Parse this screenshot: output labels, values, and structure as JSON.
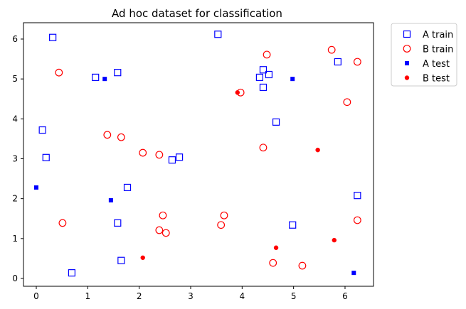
{
  "chart_data": {
    "type": "scatter",
    "title": "Ad hoc dataset for classification",
    "xlabel": "",
    "ylabel": "",
    "xlim": [
      -0.25,
      6.45
    ],
    "ylim": [
      -0.2,
      6.4
    ],
    "xticks": [
      0,
      1,
      2,
      3,
      4,
      5,
      6
    ],
    "yticks": [
      0,
      1,
      2,
      3,
      4,
      5,
      6
    ],
    "grid": false,
    "legend_placement": "outside-top-right",
    "series": [
      {
        "name": "A train",
        "marker": "open-square",
        "color": "#0000ff",
        "points": [
          [
            0.32,
            6.04
          ],
          [
            1.15,
            5.04
          ],
          [
            1.58,
            5.16
          ],
          [
            3.53,
            6.12
          ],
          [
            4.34,
            5.04
          ],
          [
            4.41,
            5.23
          ],
          [
            4.52,
            5.11
          ],
          [
            4.41,
            4.79
          ],
          [
            5.86,
            5.43
          ],
          [
            4.66,
            3.92
          ],
          [
            0.12,
            3.72
          ],
          [
            0.19,
            3.03
          ],
          [
            2.64,
            2.97
          ],
          [
            2.78,
            3.04
          ],
          [
            1.77,
            2.28
          ],
          [
            1.58,
            1.39
          ],
          [
            1.65,
            0.45
          ],
          [
            0.69,
            0.14
          ],
          [
            4.98,
            1.34
          ],
          [
            6.24,
            2.08
          ]
        ]
      },
      {
        "name": "B train",
        "marker": "open-circle",
        "color": "#ff0000",
        "points": [
          [
            0.44,
            5.16
          ],
          [
            0.51,
            1.39
          ],
          [
            1.38,
            3.6
          ],
          [
            1.65,
            3.54
          ],
          [
            2.07,
            3.15
          ],
          [
            2.39,
            3.1
          ],
          [
            2.46,
            1.58
          ],
          [
            2.39,
            1.21
          ],
          [
            2.52,
            1.14
          ],
          [
            3.65,
            1.58
          ],
          [
            3.59,
            1.34
          ],
          [
            3.97,
            4.66
          ],
          [
            4.48,
            5.61
          ],
          [
            4.41,
            3.28
          ],
          [
            4.6,
            0.39
          ],
          [
            5.17,
            0.32
          ],
          [
            5.74,
            5.73
          ],
          [
            6.24,
            5.43
          ],
          [
            6.04,
            4.42
          ],
          [
            6.24,
            1.46
          ]
        ]
      },
      {
        "name": "A test",
        "marker": "filled-square",
        "color": "#0000ff",
        "points": [
          [
            1.33,
            5.0
          ],
          [
            4.98,
            5.0
          ],
          [
            0.0,
            2.28
          ],
          [
            1.45,
            1.96
          ],
          [
            6.17,
            0.14
          ]
        ]
      },
      {
        "name": "B test",
        "marker": "filled-circle",
        "color": "#ff0000",
        "points": [
          [
            3.91,
            4.66
          ],
          [
            5.47,
            3.22
          ],
          [
            2.07,
            0.52
          ],
          [
            4.66,
            0.77
          ],
          [
            5.79,
            0.96
          ]
        ]
      }
    ]
  }
}
